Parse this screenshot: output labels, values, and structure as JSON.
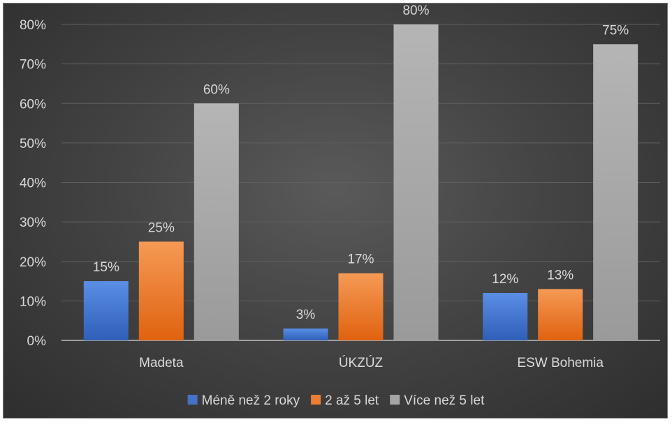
{
  "chart_data": {
    "type": "bar",
    "title": "",
    "xlabel": "",
    "ylabel": "",
    "categories": [
      "Madeta",
      "ÚKZÚZ",
      "ESW Bohemia"
    ],
    "series": [
      {
        "name": "Méně než 2 roky",
        "values": [
          15,
          3,
          12
        ],
        "color": "#4472C4"
      },
      {
        "name": "2 až 5 let",
        "values": [
          25,
          17,
          13
        ],
        "color": "#ED7D31"
      },
      {
        "name": "Více než 5 let",
        "values": [
          60,
          80,
          75
        ],
        "color": "#A5A5A5"
      }
    ],
    "data_labels": [
      [
        "15%",
        "3%",
        "12%"
      ],
      [
        "25%",
        "17%",
        "13%"
      ],
      [
        "60%",
        "80%",
        "75%"
      ]
    ],
    "ylim": [
      0,
      80
    ],
    "yticks": [
      0,
      10,
      20,
      30,
      40,
      50,
      60,
      70,
      80
    ],
    "ytick_labels": [
      "0%",
      "10%",
      "20%",
      "30%",
      "40%",
      "50%",
      "60%",
      "70%",
      "80%"
    ],
    "grid": true,
    "legend_position": "bottom",
    "background": "#404040",
    "text_color": "#d9d9d9"
  }
}
